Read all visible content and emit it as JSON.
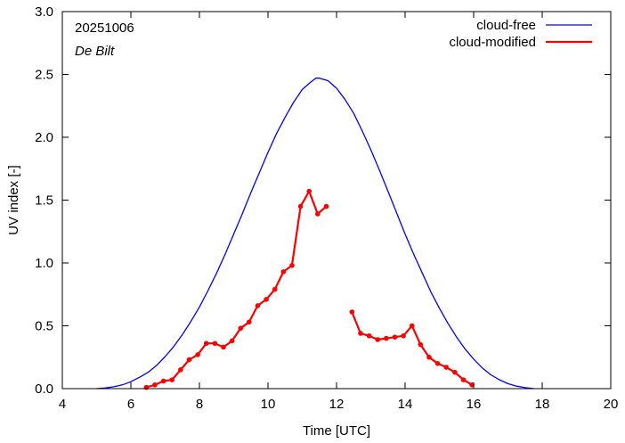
{
  "chart_data": {
    "type": "line",
    "xlabel": "Time  [UTC]",
    "ylabel": "UV index  [-]",
    "xlim": [
      4,
      20
    ],
    "ylim": [
      0,
      3.0
    ],
    "xticks": [
      4,
      6,
      8,
      10,
      12,
      14,
      16,
      18,
      20
    ],
    "yticks": [
      0.0,
      0.5,
      1.0,
      1.5,
      2.0,
      2.5,
      3.0
    ],
    "ytick_labels": [
      "0.0",
      "0.5",
      "1.0",
      "1.5",
      "2.0",
      "2.5",
      "3.0"
    ],
    "annotations": {
      "date": "20251006",
      "location": "De Bilt"
    },
    "legend_position": "top-right",
    "grid": false,
    "series": [
      {
        "name": "cloud-free",
        "color": "#0000ff",
        "style": "line",
        "x": [
          5.0,
          5.25,
          5.5,
          5.75,
          6.0,
          6.25,
          6.5,
          6.75,
          7.0,
          7.25,
          7.5,
          7.75,
          8.0,
          8.25,
          8.5,
          8.75,
          9.0,
          9.25,
          9.5,
          9.75,
          10.0,
          10.25,
          10.5,
          10.75,
          11.0,
          11.25,
          11.4,
          11.5,
          11.75,
          12.0,
          12.25,
          12.5,
          12.75,
          13.0,
          13.25,
          13.5,
          13.75,
          14.0,
          14.25,
          14.5,
          14.75,
          15.0,
          15.25,
          15.5,
          15.75,
          16.0,
          16.25,
          16.5,
          16.75,
          17.0,
          17.25,
          17.5,
          17.75
        ],
        "y": [
          0.0,
          0.005,
          0.015,
          0.03,
          0.055,
          0.09,
          0.13,
          0.185,
          0.255,
          0.335,
          0.43,
          0.535,
          0.65,
          0.78,
          0.92,
          1.07,
          1.23,
          1.39,
          1.56,
          1.72,
          1.88,
          2.03,
          2.16,
          2.28,
          2.38,
          2.44,
          2.47,
          2.47,
          2.45,
          2.39,
          2.3,
          2.19,
          2.05,
          1.9,
          1.74,
          1.57,
          1.4,
          1.23,
          1.07,
          0.92,
          0.77,
          0.64,
          0.52,
          0.41,
          0.315,
          0.235,
          0.165,
          0.11,
          0.07,
          0.04,
          0.02,
          0.008,
          0.0
        ]
      },
      {
        "name": "cloud-modified",
        "color": "#ff0000",
        "style": "line-points",
        "segments": [
          {
            "x": [
              6.45,
              6.7,
              6.95,
              7.2,
              7.45,
              7.7,
              7.95,
              8.2,
              8.45,
              8.7,
              8.95,
              9.2,
              9.45,
              9.7,
              9.95,
              10.2,
              10.45,
              10.7,
              10.95,
              11.2,
              11.45,
              11.7
            ],
            "y": [
              0.01,
              0.03,
              0.06,
              0.07,
              0.15,
              0.23,
              0.27,
              0.36,
              0.36,
              0.33,
              0.38,
              0.48,
              0.53,
              0.66,
              0.71,
              0.79,
              0.93,
              0.98,
              1.45,
              1.57,
              1.39,
              1.45
            ]
          },
          {
            "x": [
              12.45,
              12.7,
              12.95,
              13.2,
              13.45,
              13.7,
              13.95,
              14.2,
              14.45,
              14.7,
              14.95,
              15.2,
              15.45,
              15.7,
              15.95
            ],
            "y": [
              0.61,
              0.44,
              0.42,
              0.39,
              0.4,
              0.41,
              0.42,
              0.5,
              0.35,
              0.25,
              0.2,
              0.17,
              0.13,
              0.07,
              0.03
            ]
          }
        ]
      }
    ]
  }
}
